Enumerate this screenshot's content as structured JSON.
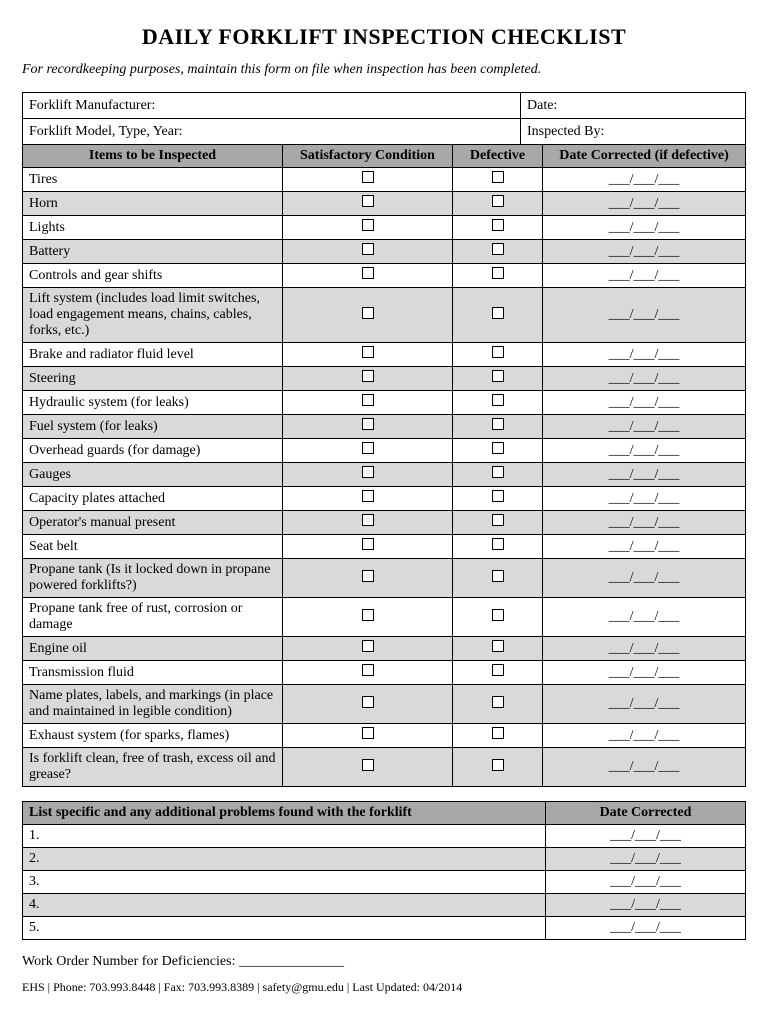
{
  "title": "DAILY FORKLIFT INSPECTION CHECKLIST",
  "subtitle": "For recordkeeping purposes, maintain this form on file when inspection has been completed.",
  "info": {
    "manufacturer_label": "Forklift Manufacturer:",
    "date_label": "Date:",
    "model_label": "Forklift Model, Type, Year:",
    "inspected_by_label": "Inspected By:"
  },
  "columns": {
    "items": "Items to be Inspected",
    "satisfactory": "Satisfactory Condition",
    "defective": "Defective",
    "date_corrected": "Date Corrected (if defective)"
  },
  "date_placeholder": "___/___/___",
  "inspection_items": [
    {
      "label": "Tires",
      "shaded": false
    },
    {
      "label": "Horn",
      "shaded": true
    },
    {
      "label": "Lights",
      "shaded": false
    },
    {
      "label": "Battery",
      "shaded": true
    },
    {
      "label": "Controls and gear shifts",
      "shaded": false
    },
    {
      "label": "Lift system (includes load limit switches, load engagement means, chains, cables, forks, etc.)",
      "shaded": true
    },
    {
      "label": "Brake and radiator fluid level",
      "shaded": false
    },
    {
      "label": "Steering",
      "shaded": true
    },
    {
      "label": "Hydraulic system (for leaks)",
      "shaded": false
    },
    {
      "label": "Fuel system (for leaks)",
      "shaded": true
    },
    {
      "label": "Overhead guards (for damage)",
      "shaded": false
    },
    {
      "label": "Gauges",
      "shaded": true
    },
    {
      "label": "Capacity plates attached",
      "shaded": false
    },
    {
      "label": "Operator's manual present",
      "shaded": true
    },
    {
      "label": "Seat belt",
      "shaded": false
    },
    {
      "label": "Propane tank (Is it locked down in propane powered forklifts?)",
      "shaded": true
    },
    {
      "label": "Propane tank free of rust, corrosion or damage",
      "shaded": false
    },
    {
      "label": "Engine oil",
      "shaded": true
    },
    {
      "label": "Transmission fluid",
      "shaded": false
    },
    {
      "label": "Name plates, labels, and markings (in place and maintained in legible condition)",
      "shaded": true
    },
    {
      "label": "Exhaust system (for sparks, flames)",
      "shaded": false
    },
    {
      "label": "Is forklift clean, free of trash, excess oil and grease?",
      "shaded": true
    }
  ],
  "problems": {
    "header_left": "List specific and any additional problems found with the forklift",
    "header_right": "Date Corrected",
    "rows": [
      {
        "num": "1.",
        "shaded": false
      },
      {
        "num": "2.",
        "shaded": true
      },
      {
        "num": "3.",
        "shaded": false
      },
      {
        "num": "4.",
        "shaded": true
      },
      {
        "num": "5.",
        "shaded": false
      }
    ]
  },
  "work_order_label": "Work Order Number for Deficiencies: _______________",
  "footer": "EHS  |  Phone: 703.993.8448  |  Fax: 703.993.8389  |  safety@gmu.edu  |  Last Updated: 04/2014",
  "colors": {
    "header_bg": "#a8a8a8",
    "shaded_bg": "#d9d9d9",
    "border": "#000000",
    "text": "#000000",
    "background": "#ffffff"
  }
}
